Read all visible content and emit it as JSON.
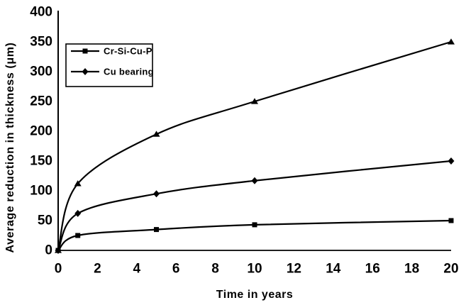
{
  "chart_data": {
    "type": "line",
    "title": "",
    "xlabel": "Time in years",
    "ylabel": "Average reduction in thickness (μm)",
    "x": [
      0,
      1,
      5,
      10,
      20
    ],
    "series": [
      {
        "label": "",
        "marker": "triangle",
        "in_legend": false,
        "values": [
          0,
          112,
          195,
          250,
          350
        ]
      },
      {
        "label": "Cu bearing",
        "marker": "diamond",
        "in_legend": true,
        "values": [
          0,
          62,
          95,
          117,
          150
        ]
      },
      {
        "label": "Cr-Si-Cu-P",
        "marker": "square",
        "in_legend": true,
        "values": [
          0,
          25,
          35,
          43,
          50
        ]
      }
    ],
    "legend": {
      "position": "upper-left-inside",
      "entries": [
        {
          "label": "Cr-Si-Cu-P",
          "marker": "square"
        },
        {
          "label": "Cu bearing",
          "marker": "diamond"
        }
      ]
    },
    "xticks": [
      0,
      2,
      4,
      6,
      8,
      10,
      12,
      14,
      16,
      18,
      20
    ],
    "yticks": [
      0,
      50,
      100,
      150,
      200,
      250,
      300,
      350,
      400
    ],
    "xlim": [
      0,
      20
    ],
    "ylim": [
      0,
      400
    ],
    "grid": false,
    "line_smoothing": true,
    "colors": {
      "line": "#000000",
      "text": "#000000",
      "background": "#ffffff"
    }
  }
}
